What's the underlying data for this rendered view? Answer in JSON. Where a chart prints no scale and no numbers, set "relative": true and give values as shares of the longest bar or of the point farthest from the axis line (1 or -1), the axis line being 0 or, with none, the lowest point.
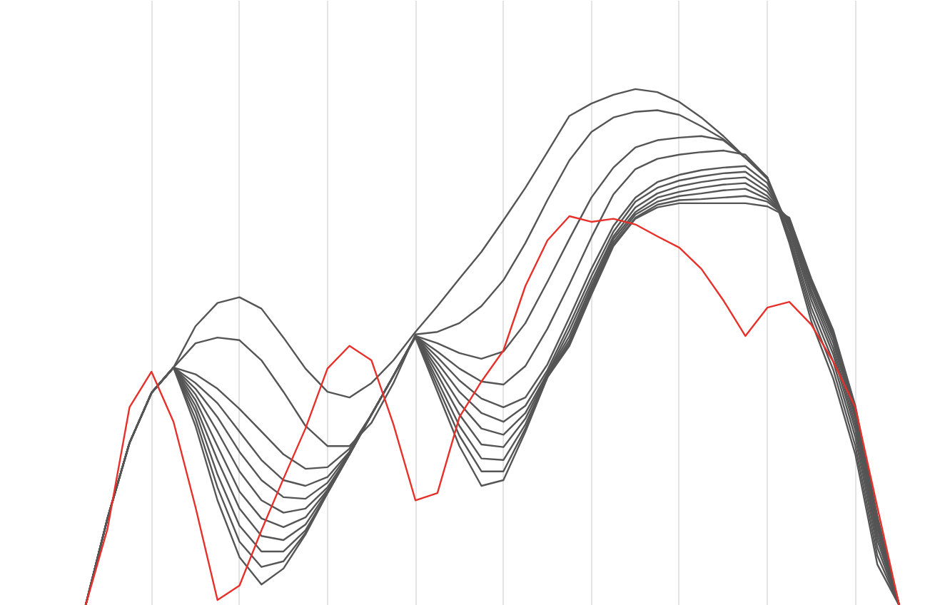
{
  "chart_data": {
    "type": "line",
    "relative": true,
    "grid": "x",
    "categories": [
      null,
      null,
      null,
      null,
      null,
      null,
      null,
      null,
      null,
      null,
      null,
      null,
      null,
      null,
      null,
      null,
      null,
      null,
      null,
      null,
      null,
      null,
      null,
      null,
      null,
      null,
      null,
      null,
      null,
      null,
      null,
      null,
      null,
      null,
      null,
      null,
      null,
      null,
      null,
      null
    ],
    "series": [
      {
        "color": "#555555",
        "values": [
          null,
          0,
          0.169,
          0.315,
          0.412,
          0.461,
          0.541,
          0.586,
          0.597,
          0.575,
          0.519,
          0.459,
          0.414,
          0.403,
          0.431,
          0.475,
          0.53,
          0.58,
          0.633,
          0.685,
          0.746,
          0.809,
          0.878,
          0.948,
          0.972,
          0.989,
          1.0,
          0.994,
          0.975,
          0.945,
          0.909,
          0.867,
          0.829,
          0.702,
          0.55,
          0.439,
          0.293,
          0.08,
          0,
          null
        ]
      },
      {
        "color": "#555555",
        "values": [
          null,
          0,
          0.169,
          0.315,
          0.412,
          0.461,
          0.508,
          0.519,
          0.514,
          0.475,
          0.414,
          0.348,
          0.309,
          0.309,
          0.354,
          0.431,
          0.525,
          0.53,
          0.547,
          0.58,
          0.63,
          0.702,
          0.785,
          0.862,
          0.917,
          0.945,
          0.956,
          0.959,
          0.95,
          0.928,
          0.903,
          0.867,
          0.829,
          0.71,
          0.564,
          0.456,
          0.309,
          0.097,
          0,
          null
        ]
      },
      {
        "color": "#555555",
        "values": [
          null,
          0,
          0.169,
          0.315,
          0.412,
          0.461,
          0.448,
          0.42,
          0.381,
          0.337,
          0.293,
          0.265,
          0.268,
          0.304,
          0.37,
          0.445,
          0.522,
          0.508,
          0.489,
          0.478,
          0.492,
          0.547,
          0.627,
          0.71,
          0.79,
          0.848,
          0.887,
          0.901,
          0.906,
          0.909,
          0.901,
          0.867,
          0.826,
          0.718,
          0.577,
          0.472,
          0.326,
          0.113,
          0,
          null
        ]
      },
      {
        "color": "#555555",
        "values": [
          null,
          0,
          0.169,
          0.315,
          0.412,
          0.461,
          0.431,
          0.392,
          0.337,
          0.282,
          0.243,
          0.232,
          0.249,
          0.298,
          0.37,
          0.445,
          0.522,
          0.492,
          0.459,
          0.434,
          0.428,
          0.464,
          0.536,
          0.622,
          0.713,
          0.796,
          0.845,
          0.865,
          0.873,
          0.878,
          0.881,
          0.873,
          0.829,
          0.727,
          0.591,
          0.486,
          0.34,
          0.127,
          0,
          null
        ]
      },
      {
        "color": "#555555",
        "values": [
          null,
          0,
          0.169,
          0.315,
          0.412,
          0.461,
          0.42,
          0.365,
          0.298,
          0.243,
          0.21,
          0.207,
          0.238,
          0.296,
          0.37,
          0.445,
          0.522,
          0.481,
          0.436,
          0.401,
          0.384,
          0.403,
          0.467,
          0.558,
          0.652,
          0.735,
          0.79,
          0.82,
          0.834,
          0.843,
          0.848,
          0.851,
          0.818,
          0.732,
          0.602,
          0.497,
          0.351,
          0.138,
          0,
          null
        ]
      },
      {
        "color": "#555555",
        "values": [
          null,
          0,
          0.169,
          0.315,
          0.412,
          0.461,
          0.409,
          0.337,
          0.26,
          0.204,
          0.18,
          0.188,
          0.229,
          0.293,
          0.37,
          0.445,
          0.522,
          0.47,
          0.414,
          0.373,
          0.356,
          0.387,
          0.456,
          0.544,
          0.638,
          0.724,
          0.782,
          0.809,
          0.823,
          0.831,
          0.837,
          0.84,
          0.809,
          0.738,
          0.61,
          0.508,
          0.362,
          0.149,
          0,
          null
        ]
      },
      {
        "color": "#555555",
        "values": [
          null,
          0,
          0.169,
          0.315,
          0.412,
          0.461,
          0.398,
          0.309,
          0.221,
          0.169,
          0.152,
          0.171,
          0.224,
          0.293,
          0.37,
          0.445,
          0.522,
          0.459,
          0.392,
          0.343,
          0.331,
          0.373,
          0.45,
          0.533,
          0.627,
          0.715,
          0.771,
          0.798,
          0.812,
          0.82,
          0.826,
          0.829,
          0.801,
          0.743,
          0.619,
          0.517,
          0.37,
          0.157,
          0,
          null
        ]
      },
      {
        "color": "#555555",
        "values": [
          null,
          0,
          0.169,
          0.315,
          0.412,
          0.461,
          0.387,
          0.282,
          0.188,
          0.135,
          0.127,
          0.157,
          0.221,
          0.293,
          0.37,
          0.445,
          0.522,
          0.448,
          0.37,
          0.312,
          0.307,
          0.362,
          0.448,
          0.522,
          0.619,
          0.71,
          0.762,
          0.79,
          0.801,
          0.809,
          0.815,
          0.818,
          0.793,
          0.746,
          0.624,
          0.522,
          0.376,
          0.163,
          0,
          null
        ]
      },
      {
        "color": "#555555",
        "values": [
          null,
          0,
          0.169,
          0.315,
          0.412,
          0.461,
          0.376,
          0.254,
          0.155,
          0.105,
          0.105,
          0.146,
          0.218,
          0.293,
          0.37,
          0.445,
          0.522,
          0.436,
          0.348,
          0.285,
          0.282,
          0.351,
          0.445,
          0.514,
          0.613,
          0.704,
          0.757,
          0.782,
          0.793,
          0.798,
          0.804,
          0.807,
          0.787,
          0.749,
          0.627,
          0.528,
          0.381,
          0.169,
          0,
          null
        ]
      },
      {
        "color": "#555555",
        "values": [
          null,
          0,
          0.169,
          0.315,
          0.412,
          0.461,
          0.362,
          0.229,
          0.124,
          0.075,
          0.086,
          0.141,
          0.218,
          0.293,
          0.37,
          0.445,
          0.522,
          0.425,
          0.329,
          0.26,
          0.26,
          0.343,
          0.442,
          0.508,
          0.608,
          0.699,
          0.751,
          0.776,
          0.785,
          0.787,
          0.79,
          0.793,
          0.782,
          0.749,
          0.63,
          0.53,
          0.384,
          0.171,
          0,
          null
        ]
      },
      {
        "color": "#555555",
        "values": [
          null,
          0,
          0.169,
          0.315,
          0.412,
          0.461,
          0.348,
          0.204,
          0.094,
          0.041,
          0.072,
          0.138,
          0.218,
          0.293,
          0.37,
          0.445,
          0.519,
          0.414,
          0.309,
          0.232,
          0.243,
          0.337,
          0.442,
          0.503,
          0.602,
          0.696,
          0.749,
          0.771,
          0.779,
          0.779,
          0.779,
          0.779,
          0.773,
          0.751,
          0.633,
          0.533,
          0.387,
          0.174,
          0,
          null
        ]
      },
      {
        "color": "#e8302a",
        "values": [
          null,
          0,
          0.149,
          0.384,
          0.453,
          0.356,
          0.191,
          0.011,
          0.039,
          0.146,
          0.246,
          0.343,
          0.459,
          0.503,
          0.475,
          0.351,
          0.204,
          0.218,
          0.365,
          0.434,
          0.494,
          0.619,
          0.707,
          0.754,
          0.743,
          0.749,
          0.738,
          0.715,
          0.693,
          0.652,
          0.591,
          0.522,
          0.577,
          0.588,
          0.544,
          0.472,
          0.384,
          0.191,
          0,
          null
        ]
      }
    ]
  }
}
